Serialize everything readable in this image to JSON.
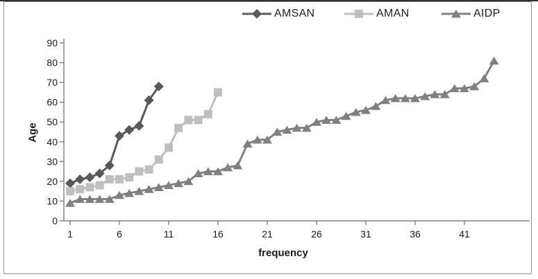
{
  "chart_data": {
    "type": "line",
    "title": "",
    "xlabel": "frequency",
    "ylabel": "Age",
    "x_tick_labels": [
      "1",
      "6",
      "11",
      "16",
      "21",
      "26",
      "31",
      "36",
      "41"
    ],
    "x_tick_values": [
      1,
      6,
      11,
      16,
      21,
      26,
      31,
      36,
      41
    ],
    "y_tick_labels": [
      "0",
      "10",
      "20",
      "30",
      "40",
      "50",
      "60",
      "70",
      "80",
      "90"
    ],
    "y_tick_values": [
      0,
      10,
      20,
      30,
      40,
      50,
      60,
      70,
      80,
      90
    ],
    "xlim": [
      0,
      45
    ],
    "ylim": [
      0,
      90
    ],
    "grid": false,
    "legend_position": "top",
    "series": [
      {
        "name": "AMSAN",
        "marker": "diamond",
        "color": "#595959",
        "x_start": 1,
        "values": [
          19,
          21,
          22,
          24,
          28,
          43,
          46,
          48,
          61,
          68
        ]
      },
      {
        "name": "AMAN",
        "marker": "square",
        "color": "#bfbfbf",
        "x_start": 1,
        "values": [
          15,
          16,
          17,
          18,
          21,
          21,
          22,
          25,
          26,
          31,
          37,
          47,
          51,
          51,
          54,
          65
        ]
      },
      {
        "name": "AIDP",
        "marker": "triangle",
        "color": "#808080",
        "x_start": 1,
        "values": [
          9,
          11,
          11,
          11,
          11,
          13,
          14,
          15,
          16,
          17,
          18,
          19,
          20,
          24,
          25,
          25,
          27,
          28,
          39,
          41,
          41,
          45,
          46,
          47,
          47,
          50,
          51,
          51,
          53,
          55,
          56,
          58,
          61,
          62,
          62,
          62,
          63,
          64,
          64,
          67,
          67,
          68,
          72,
          81
        ]
      }
    ]
  },
  "colors": {
    "axis": "#7f7f7f",
    "tick_text": "#1a1a1a",
    "frame_border": "#8f8f8f"
  }
}
